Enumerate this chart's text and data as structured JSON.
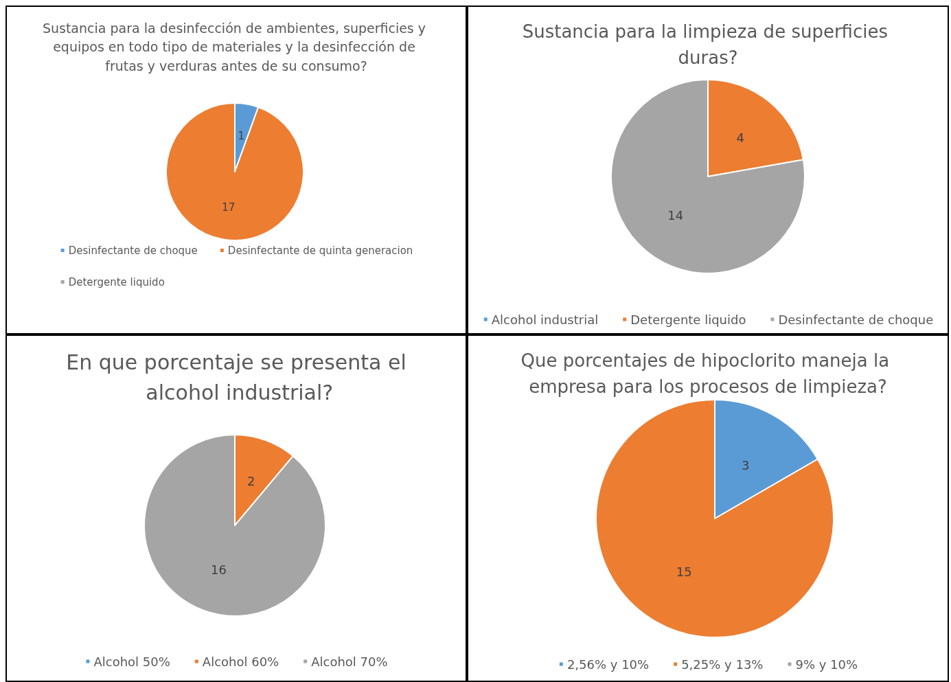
{
  "chart_data": [
    {
      "type": "pie",
      "title": "Sustancia para la desinfección de ambientes, superficies y equipos en todo tipo de materiales y la desinfección de frutas y verduras antes de su consumo?",
      "categories": [
        "Desinfectante de choque",
        "Desinfectante de quinta generacion",
        "Detergente liquido"
      ],
      "values": [
        1,
        17,
        0
      ],
      "value_labels": [
        "1",
        "17",
        null
      ],
      "colors": [
        "#5b9bd5",
        "#ed7d31",
        "#a5a5a5"
      ],
      "legend": "bottom"
    },
    {
      "type": "pie",
      "title": "Sustancia para la limpieza de superficies duras?",
      "categories": [
        "Alcohol industrial",
        "Detergente liquido",
        "Desinfectante de choque"
      ],
      "values": [
        0,
        4,
        14
      ],
      "value_labels": [
        null,
        "4",
        "14"
      ],
      "colors": [
        "#5b9bd5",
        "#ed7d31",
        "#a5a5a5"
      ],
      "legend": "bottom"
    },
    {
      "type": "pie",
      "title": "En que porcentaje se presenta el alcohol industrial?",
      "categories": [
        "Alcohol 50%",
        "Alcohol 60%",
        "Alcohol 70%"
      ],
      "values": [
        0,
        2,
        16
      ],
      "value_labels": [
        null,
        "2",
        "16"
      ],
      "colors": [
        "#5b9bd5",
        "#ed7d31",
        "#a5a5a5"
      ],
      "legend": "bottom"
    },
    {
      "type": "pie",
      "title": "Que porcentajes de hipoclorito maneja la empresa para los procesos de limpieza?",
      "categories": [
        "2,56% y 10%",
        "5,25% y 13%",
        "9% y 10%"
      ],
      "values": [
        3,
        15,
        0
      ],
      "value_labels": [
        "3",
        "15",
        null
      ],
      "colors": [
        "#5b9bd5",
        "#ed7d31",
        "#a5a5a5"
      ],
      "legend": "bottom"
    }
  ]
}
